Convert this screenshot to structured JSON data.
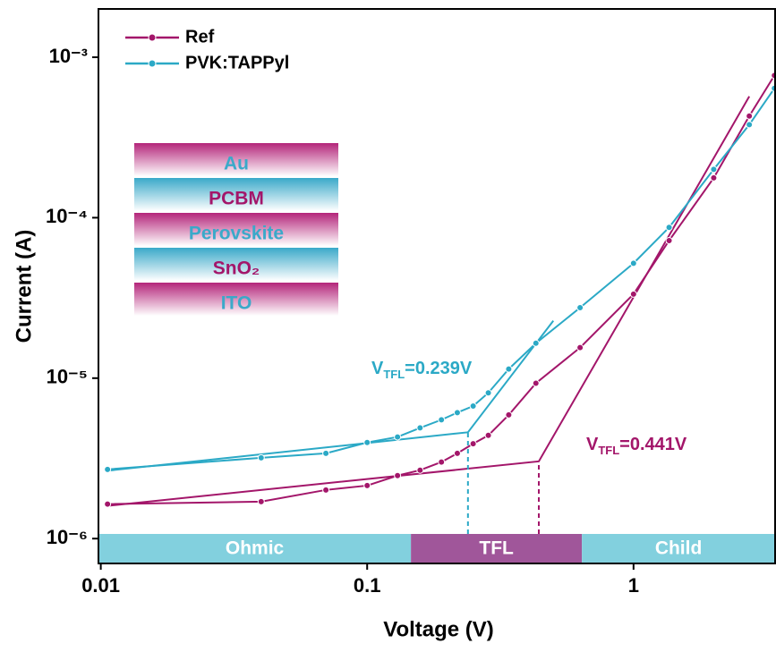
{
  "chart_data": {
    "type": "line",
    "x_label": "Voltage (V)",
    "y_label": "Current (A)",
    "xscale": "log",
    "yscale": "log",
    "xlim": [
      0.0098,
      3.4
    ],
    "ylim": [
      7e-07,
      0.002
    ],
    "xticks": [
      0.01,
      0.1,
      1
    ],
    "yticks": [
      {
        "value": 1e-06,
        "label": "10⁻⁶"
      },
      {
        "value": 1e-05,
        "label": "10⁻⁵"
      },
      {
        "value": 0.0001,
        "label": "10⁻⁴"
      },
      {
        "value": 0.001,
        "label": "10⁻³"
      }
    ],
    "x": [
      0.0106,
      0.04,
      0.07,
      0.1,
      0.13,
      0.158,
      0.19,
      0.218,
      0.25,
      0.285,
      0.34,
      0.43,
      0.63,
      1,
      1.36,
      2,
      2.72,
      3.38
    ],
    "series": [
      {
        "name": "Ref",
        "color": "#a3166a",
        "values": [
          1.64e-06,
          1.7e-06,
          2.01e-06,
          2.14e-06,
          2.47e-06,
          2.67e-06,
          3e-06,
          3.4e-06,
          3.9e-06,
          4.4e-06,
          5.9e-06,
          9.3e-06,
          1.55e-05,
          3.34e-05,
          7.2e-05,
          0.000177,
          0.00043,
          0.00077
        ]
      },
      {
        "name": "PVK:TAPPyl",
        "color": "#2ba9c6",
        "values": [
          2.7e-06,
          3.19e-06,
          3.4e-06,
          3.97e-06,
          4.3e-06,
          4.9e-06,
          5.5e-06,
          6.1e-06,
          6.7e-06,
          8.1e-06,
          1.14e-05,
          1.65e-05,
          2.75e-05,
          5.2e-05,
          8.7e-05,
          0.0002,
          0.00038,
          0.00064
        ]
      }
    ],
    "fits": [
      {
        "color": "#a3166a",
        "x": [
          0.0106,
          0.441,
          2.72
        ],
        "values": [
          1.6e-06,
          3.03e-06,
          0.00057
        ]
      },
      {
        "color": "#2ba9c6",
        "x": [
          0.0106,
          0.239,
          0.5
        ],
        "values": [
          2.65e-06,
          4.6e-06,
          2.28e-05
        ]
      }
    ],
    "annotations": [
      {
        "main": "V",
        "sub": "TFL",
        "rest": "=0.239V",
        "x": 0.239,
        "y": 4.6e-06,
        "color": "#2ba9c6"
      },
      {
        "main": "V",
        "sub": "TFL",
        "rest": "=0.441V",
        "x": 0.441,
        "y": 3.03e-06,
        "color": "#a3166a"
      }
    ],
    "regions": [
      {
        "name": "Ohmic",
        "from": 0.0098,
        "to": 0.146,
        "color": "#82d0de"
      },
      {
        "name": "TFL",
        "from": 0.146,
        "to": 0.64,
        "color": "#a0569a"
      },
      {
        "name": "Child",
        "from": 0.64,
        "to": 3.4,
        "color": "#82d0de"
      }
    ],
    "layers": [
      {
        "label": "Au",
        "color": "#b4257a",
        "text_color": "#3aa9c9"
      },
      {
        "label": "PCBM",
        "color": "#3aa9c9",
        "text_color": "#a3166a"
      },
      {
        "label": "Perovskite",
        "color": "#b4257a",
        "text_color": "#3aa9c9"
      },
      {
        "label": "SnO₂",
        "color": "#3aa9c9",
        "text_color": "#a3166a"
      },
      {
        "label": "ITO",
        "color": "#b4257a",
        "text_color": "#3aa9c9"
      }
    ]
  }
}
